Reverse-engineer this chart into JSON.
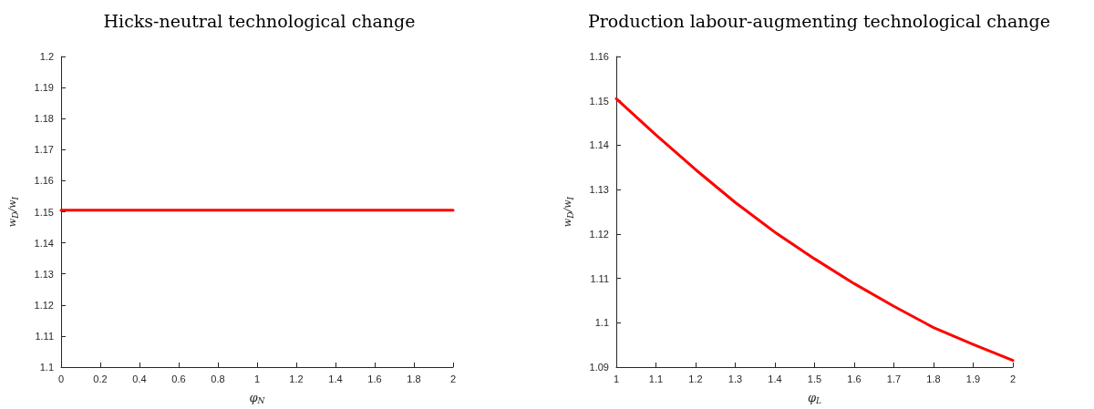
{
  "chart_data": [
    {
      "type": "line",
      "title": "Hicks-neutral technological change",
      "xlabel": "φ$_{N}$",
      "ylabel": "w$_{D}$/w$_{I}$",
      "series": [
        {
          "color": "#ff0000",
          "x": [
            0,
            0.5,
            1,
            1.5,
            2
          ],
          "values": [
            1.1505,
            1.1505,
            1.1505,
            1.1505,
            1.1505
          ]
        }
      ],
      "xlim": [
        0,
        2
      ],
      "xticks": [
        0,
        0.2,
        0.4,
        0.6,
        0.8,
        1,
        1.2,
        1.4,
        1.6,
        1.8,
        2
      ],
      "ylim": [
        1.1,
        1.2
      ],
      "yticks": [
        1.1,
        1.11,
        1.12,
        1.13,
        1.14,
        1.15,
        1.16,
        1.17,
        1.18,
        1.19,
        1.2
      ],
      "grid": false,
      "marker": "none",
      "line_style": "solid"
    },
    {
      "type": "line",
      "title": "Production labour-augmenting technological change",
      "xlabel": "φ$_{L}$",
      "ylabel": "w$_{D}$/w$_{I}$",
      "series": [
        {
          "color": "#ff0000",
          "x": [
            1,
            1.1,
            1.2,
            1.3,
            1.4,
            1.5,
            1.6,
            1.7,
            1.8,
            1.9,
            2
          ],
          "values": [
            1.1505,
            1.1423,
            1.1345,
            1.1271,
            1.1204,
            1.1144,
            1.1088,
            1.1037,
            1.0989,
            1.0951,
            1.0915
          ]
        }
      ],
      "xlim": [
        1,
        2
      ],
      "xticks": [
        1,
        1.1,
        1.2,
        1.3,
        1.4,
        1.5,
        1.6,
        1.7,
        1.8,
        1.9,
        2
      ],
      "ylim": [
        1.09,
        1.16
      ],
      "yticks": [
        1.09,
        1.1,
        1.11,
        1.12,
        1.13,
        1.14,
        1.15,
        1.16
      ],
      "grid": false,
      "marker": "none",
      "line_style": "solid"
    }
  ]
}
